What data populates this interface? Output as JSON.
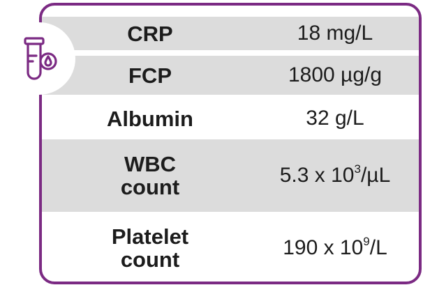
{
  "rows": [
    {
      "label": "CRP",
      "value_main": "18 mg/L",
      "value_sup": "",
      "value_tail": ""
    },
    {
      "label": "FCP",
      "value_main": "1800 µg/g",
      "value_sup": "",
      "value_tail": ""
    },
    {
      "label": "Albumin",
      "value_main": "32 g/L",
      "value_sup": "",
      "value_tail": ""
    },
    {
      "label_line1": "WBC",
      "label_line2": "count",
      "value_main": "5.3 x 10",
      "value_sup": "3",
      "value_tail": "/µL"
    },
    {
      "label_line1": "Platelet",
      "label_line2": "count",
      "value_main": "190 x 10",
      "value_sup": "9",
      "value_tail": "/L"
    }
  ],
  "colors": {
    "border": "#7b2a83",
    "shade": "#dcdcdc",
    "text": "#1c1c1c"
  },
  "icon": "test-tube-icon"
}
